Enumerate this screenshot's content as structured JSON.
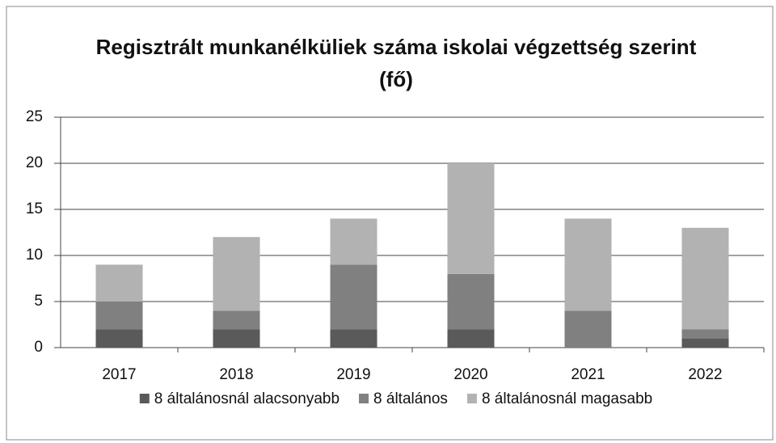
{
  "chart_data": {
    "type": "stacked_bar",
    "title": "Regisztrált munkanélküliek száma iskolai végzettség szerint (fő)",
    "categories": [
      "2017",
      "2018",
      "2019",
      "2020",
      "2021",
      "2022"
    ],
    "series": [
      {
        "name": "8 általánosnál alacsonyabb",
        "color": "#5a5a5a",
        "values": [
          2,
          2,
          2,
          2,
          0,
          1
        ]
      },
      {
        "name": "8 általános",
        "color": "#808080",
        "values": [
          3,
          2,
          7,
          6,
          4,
          1
        ]
      },
      {
        "name": "8 általánosnál magasabb",
        "color": "#b2b2b2",
        "values": [
          4,
          8,
          5,
          12,
          10,
          11
        ]
      }
    ],
    "ylim": [
      0,
      25
    ],
    "yticks": [
      0,
      5,
      10,
      15,
      20,
      25
    ],
    "grid": true,
    "legend": "bottom"
  }
}
